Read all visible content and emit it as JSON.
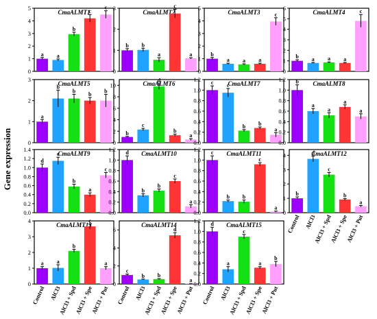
{
  "figure": {
    "ylabel": "Gene expression",
    "treatments": [
      "Control",
      "AlCl3",
      "AlCl3 + Spd",
      "AlCl3 + Spe",
      "AlCl3 + Put"
    ],
    "colors": [
      "#9b00ff",
      "#1fa3ff",
      "#14e014",
      "#ff3535",
      "#ffa0ff"
    ]
  },
  "chart_data": [
    {
      "type": "bar",
      "title": "CmaALMT1",
      "categories": [
        "Control",
        "AlCl3",
        "AlCl3 + Spd",
        "AlCl3 + Spe",
        "AlCl3 + Put"
      ],
      "values": [
        1.0,
        0.9,
        2.95,
        4.2,
        4.5
      ],
      "errors": [
        0.1,
        0.08,
        0.15,
        0.3,
        0.3
      ],
      "letters": [
        "a",
        "a",
        "b",
        "c",
        "c"
      ],
      "ylim": [
        0,
        5
      ],
      "yticks": [
        "0",
        "1",
        "2",
        "3",
        "4",
        "5"
      ]
    },
    {
      "type": "bar",
      "title": "CmaALMT2",
      "categories": [
        "Control",
        "AlCl3",
        "AlCl3 + Spd",
        "AlCl3 + Spe",
        "AlCl3 + Put"
      ],
      "values": [
        1.0,
        1.02,
        0.55,
        2.75,
        0.62
      ],
      "errors": [
        0.08,
        0.08,
        0.1,
        0.2,
        0.03
      ],
      "letters": [
        "b",
        "b",
        "a",
        "c",
        "a"
      ],
      "ylim": [
        0,
        3
      ],
      "yticks": [
        "0",
        "1",
        "2",
        "3"
      ]
    },
    {
      "type": "bar",
      "title": "CmaALMT3",
      "categories": [
        "Control",
        "AlCl3",
        "AlCl3 + Spd",
        "AlCl3 + Spe",
        "AlCl3 + Put"
      ],
      "values": [
        1.0,
        0.6,
        0.55,
        0.6,
        3.95
      ],
      "errors": [
        0.1,
        0.05,
        0.05,
        0.05,
        0.3
      ],
      "letters": [
        "b",
        "a",
        "a",
        "a",
        "c"
      ],
      "ylim": [
        0,
        5
      ],
      "yticks": [
        "0",
        "1",
        "2",
        "3",
        "4",
        "5"
      ]
    },
    {
      "type": "bar",
      "title": "CmaALMT4",
      "categories": [
        "Control",
        "AlCl3",
        "AlCl3 + Spd",
        "AlCl3 + Spe",
        "AlCl3 + Put"
      ],
      "values": [
        1.0,
        0.8,
        0.85,
        0.8,
        4.8
      ],
      "errors": [
        0.1,
        0.05,
        0.05,
        0.05,
        0.6
      ],
      "letters": [
        "b",
        "a",
        "a",
        "a",
        "c"
      ],
      "ylim": [
        0,
        6
      ],
      "yticks": [
        "0",
        "1",
        "2",
        "3",
        "4",
        "5",
        "6"
      ]
    },
    {
      "type": "bar",
      "title": "CmaALMT5",
      "categories": [
        "Control",
        "AlCl3",
        "AlCl3 + Spd",
        "AlCl3 + Spe",
        "AlCl3 + Put"
      ],
      "values": [
        1.0,
        2.1,
        2.1,
        2.0,
        2.0
      ],
      "errors": [
        0.1,
        0.4,
        0.2,
        0.15,
        0.3
      ],
      "letters": [
        "a",
        "b",
        "b",
        "b",
        "b"
      ],
      "ylim": [
        0,
        3
      ],
      "yticks": [
        "0",
        "1",
        "2",
        "3"
      ]
    },
    {
      "type": "bar",
      "title": "CmaALMT6",
      "categories": [
        "Control",
        "AlCl3",
        "AlCl3 + Spd",
        "AlCl3 + Spe",
        "AlCl3 + Put"
      ],
      "values": [
        1.0,
        2.3,
        9.8,
        1.3,
        0.55
      ],
      "errors": [
        0.1,
        0.2,
        0.5,
        0.2,
        0.15
      ],
      "letters": [
        "b",
        "c",
        "d",
        "b",
        "a"
      ],
      "ylim": [
        0,
        11
      ],
      "yticks": [
        "0",
        "2",
        "4",
        "6",
        "8",
        "10"
      ]
    },
    {
      "type": "bar",
      "title": "CmaALMT7",
      "categories": [
        "Control",
        "AlCl3",
        "AlCl3 + Spd",
        "AlCl3 + Spe",
        "AlCl3 + Put"
      ],
      "values": [
        1.0,
        0.95,
        0.23,
        0.28,
        0.15
      ],
      "errors": [
        0.08,
        0.08,
        0.02,
        0.02,
        0.04
      ],
      "letters": [
        "c",
        "c",
        "b",
        "b",
        "a"
      ],
      "ylim": [
        0,
        1.2
      ],
      "yticks": [
        "0.0",
        "0.2",
        "0.4",
        "0.6",
        "0.8",
        "1.0",
        "1.2"
      ]
    },
    {
      "type": "bar",
      "title": "CmaALMT8",
      "categories": [
        "Control",
        "AlCl3",
        "AlCl3 + Spd",
        "AlCl3 + Spe",
        "AlCl3 + Put"
      ],
      "values": [
        1.0,
        0.6,
        0.52,
        0.68,
        0.5
      ],
      "errors": [
        0.1,
        0.05,
        0.05,
        0.04,
        0.05
      ],
      "letters": [
        "b",
        "a",
        "a",
        "a",
        "a"
      ],
      "ylim": [
        0,
        1.2
      ],
      "yticks": [
        "0.0",
        "0.2",
        "0.4",
        "0.6",
        "0.8",
        "1.0",
        "1.2"
      ]
    },
    {
      "type": "bar",
      "title": "CmaALMT9",
      "categories": [
        "Control",
        "AlCl3",
        "AlCl3 + Spd",
        "AlCl3 + Spe",
        "AlCl3 + Put"
      ],
      "values": [
        1.0,
        1.15,
        0.58,
        0.4,
        0.83
      ],
      "errors": [
        0.08,
        0.08,
        0.05,
        0.04,
        0.06
      ],
      "letters": [
        "d",
        "e",
        "b",
        "a",
        "c"
      ],
      "ylim": [
        0,
        1.4
      ],
      "yticks": [
        "0.0",
        "0.2",
        "0.4",
        "0.6",
        "0.8",
        "1.0",
        "1.2",
        "1.4"
      ]
    },
    {
      "type": "bar",
      "title": "CmaALMT10",
      "categories": [
        "Control",
        "AlCl3",
        "AlCl3 + Spd",
        "AlCl3 + Spe",
        "AlCl3 + Put"
      ],
      "values": [
        1.0,
        0.33,
        0.42,
        0.6,
        0.12
      ],
      "errors": [
        0.08,
        0.03,
        0.03,
        0.04,
        0.03
      ],
      "letters": [
        "d",
        "b",
        "b",
        "c",
        "a"
      ],
      "ylim": [
        0,
        1.2
      ],
      "yticks": [
        "0.0",
        "0.2",
        "0.4",
        "0.6",
        "0.8",
        "1.0",
        "1.2"
      ]
    },
    {
      "type": "bar",
      "title": "CmaALMT11",
      "categories": [
        "Control",
        "AlCl3",
        "AlCl3 + Spd",
        "AlCl3 + Spe",
        "AlCl3 + Put"
      ],
      "values": [
        1.0,
        0.22,
        0.21,
        0.92,
        0.02
      ],
      "errors": [
        0.08,
        0.02,
        0.03,
        0.03,
        0.01
      ],
      "letters": [
        "c",
        "b",
        "b",
        "c",
        "a"
      ],
      "ylim": [
        0,
        1.2
      ],
      "yticks": [
        "0.0",
        "0.2",
        "0.4",
        "0.6",
        "0.8",
        "1.0",
        "1.2"
      ]
    },
    {
      "type": "bar",
      "title": "CmaALMT12",
      "categories": [
        "Control",
        "AlCl3",
        "AlCl3 + Spd",
        "AlCl3 + Spe",
        "AlCl3 + Put"
      ],
      "values": [
        1.0,
        3.75,
        2.65,
        0.92,
        0.45
      ],
      "errors": [
        0.1,
        0.2,
        0.15,
        0.06,
        0.05
      ],
      "letters": [
        "b",
        "d",
        "c",
        "b",
        "a"
      ],
      "ylim": [
        0,
        4.4
      ],
      "yticks": [
        "0",
        "1",
        "2",
        "3",
        "4"
      ]
    },
    {
      "type": "bar",
      "title": "CmaALMT13",
      "categories": [
        "Control",
        "AlCl3",
        "AlCl3 + Spd",
        "AlCl3 + Spe",
        "AlCl3 + Put"
      ],
      "values": [
        1.0,
        1.02,
        2.1,
        3.65,
        1.0
      ],
      "errors": [
        0.1,
        0.2,
        0.1,
        0.15,
        0.1
      ],
      "letters": [
        "a",
        "a",
        "b",
        "c",
        "a"
      ],
      "ylim": [
        0,
        4
      ],
      "yticks": [
        "0",
        "1",
        "2",
        "3",
        "4"
      ]
    },
    {
      "type": "bar",
      "title": "CmaALMT14",
      "categories": [
        "Control",
        "AlCl3",
        "AlCl3 + Spd",
        "AlCl3 + Spe",
        "AlCl3 + Put"
      ],
      "values": [
        1.0,
        0.5,
        0.55,
        5.4,
        0.05
      ],
      "errors": [
        0.1,
        0.05,
        0.05,
        0.3,
        0.01
      ],
      "letters": [
        "c",
        "b",
        "b",
        "d",
        "a"
      ],
      "ylim": [
        0,
        7
      ],
      "yticks": [
        "0",
        "2",
        "4",
        "6"
      ]
    },
    {
      "type": "bar",
      "title": "CmaALMT15",
      "categories": [
        "Control",
        "AlCl3",
        "AlCl3 + Spd",
        "AlCl3 + Spe",
        "AlCl3 + Put"
      ],
      "values": [
        1.0,
        0.28,
        0.9,
        0.31,
        0.38
      ],
      "errors": [
        0.08,
        0.05,
        0.04,
        0.02,
        0.05
      ],
      "letters": [
        "d",
        "a",
        "c",
        "a",
        "b"
      ],
      "ylim": [
        0,
        1.2
      ],
      "yticks": [
        "0.0",
        "0.2",
        "0.4",
        "0.6",
        "0.8",
        "1.0",
        "1.2"
      ]
    }
  ]
}
